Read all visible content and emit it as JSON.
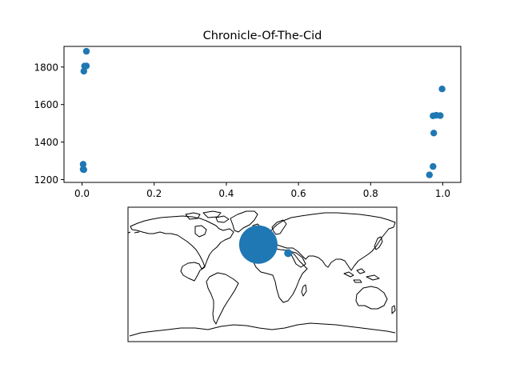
{
  "chart_data": [
    {
      "type": "scatter",
      "title": "Chronicle-Of-The-Cid",
      "xlabel": "",
      "ylabel": "",
      "xlim": [
        -0.05,
        1.05
      ],
      "ylim": [
        1185,
        1910
      ],
      "xticks": [
        0.0,
        0.2,
        0.4,
        0.6,
        0.8,
        1.0
      ],
      "xtick_labels": [
        "0.0",
        "0.2",
        "0.4",
        "0.6",
        "0.8",
        "1.0"
      ],
      "yticks": [
        1200,
        1400,
        1600,
        1800
      ],
      "ytick_labels": [
        "1200",
        "1400",
        "1600",
        "1800"
      ],
      "grid": false,
      "color": "#1f77b4",
      "points": [
        {
          "x": 0.012,
          "y": 1884
        },
        {
          "x": 0.007,
          "y": 1805
        },
        {
          "x": 0.012,
          "y": 1806
        },
        {
          "x": 0.005,
          "y": 1778
        },
        {
          "x": 0.003,
          "y": 1282
        },
        {
          "x": 0.003,
          "y": 1255
        },
        {
          "x": 0.005,
          "y": 1253
        },
        {
          "x": 0.998,
          "y": 1683
        },
        {
          "x": 0.973,
          "y": 1540
        },
        {
          "x": 0.982,
          "y": 1543
        },
        {
          "x": 0.993,
          "y": 1541
        },
        {
          "x": 0.975,
          "y": 1448
        },
        {
          "x": 0.973,
          "y": 1270
        },
        {
          "x": 0.963,
          "y": 1225
        }
      ]
    },
    {
      "type": "map",
      "projection": "equirectangular",
      "coastlines": true,
      "color": "#1f77b4",
      "markers": [
        {
          "lon": -5.5,
          "lat": 40.0,
          "size": "large"
        },
        {
          "lon": 34.5,
          "lat": 28.5,
          "size": "small"
        }
      ]
    }
  ]
}
